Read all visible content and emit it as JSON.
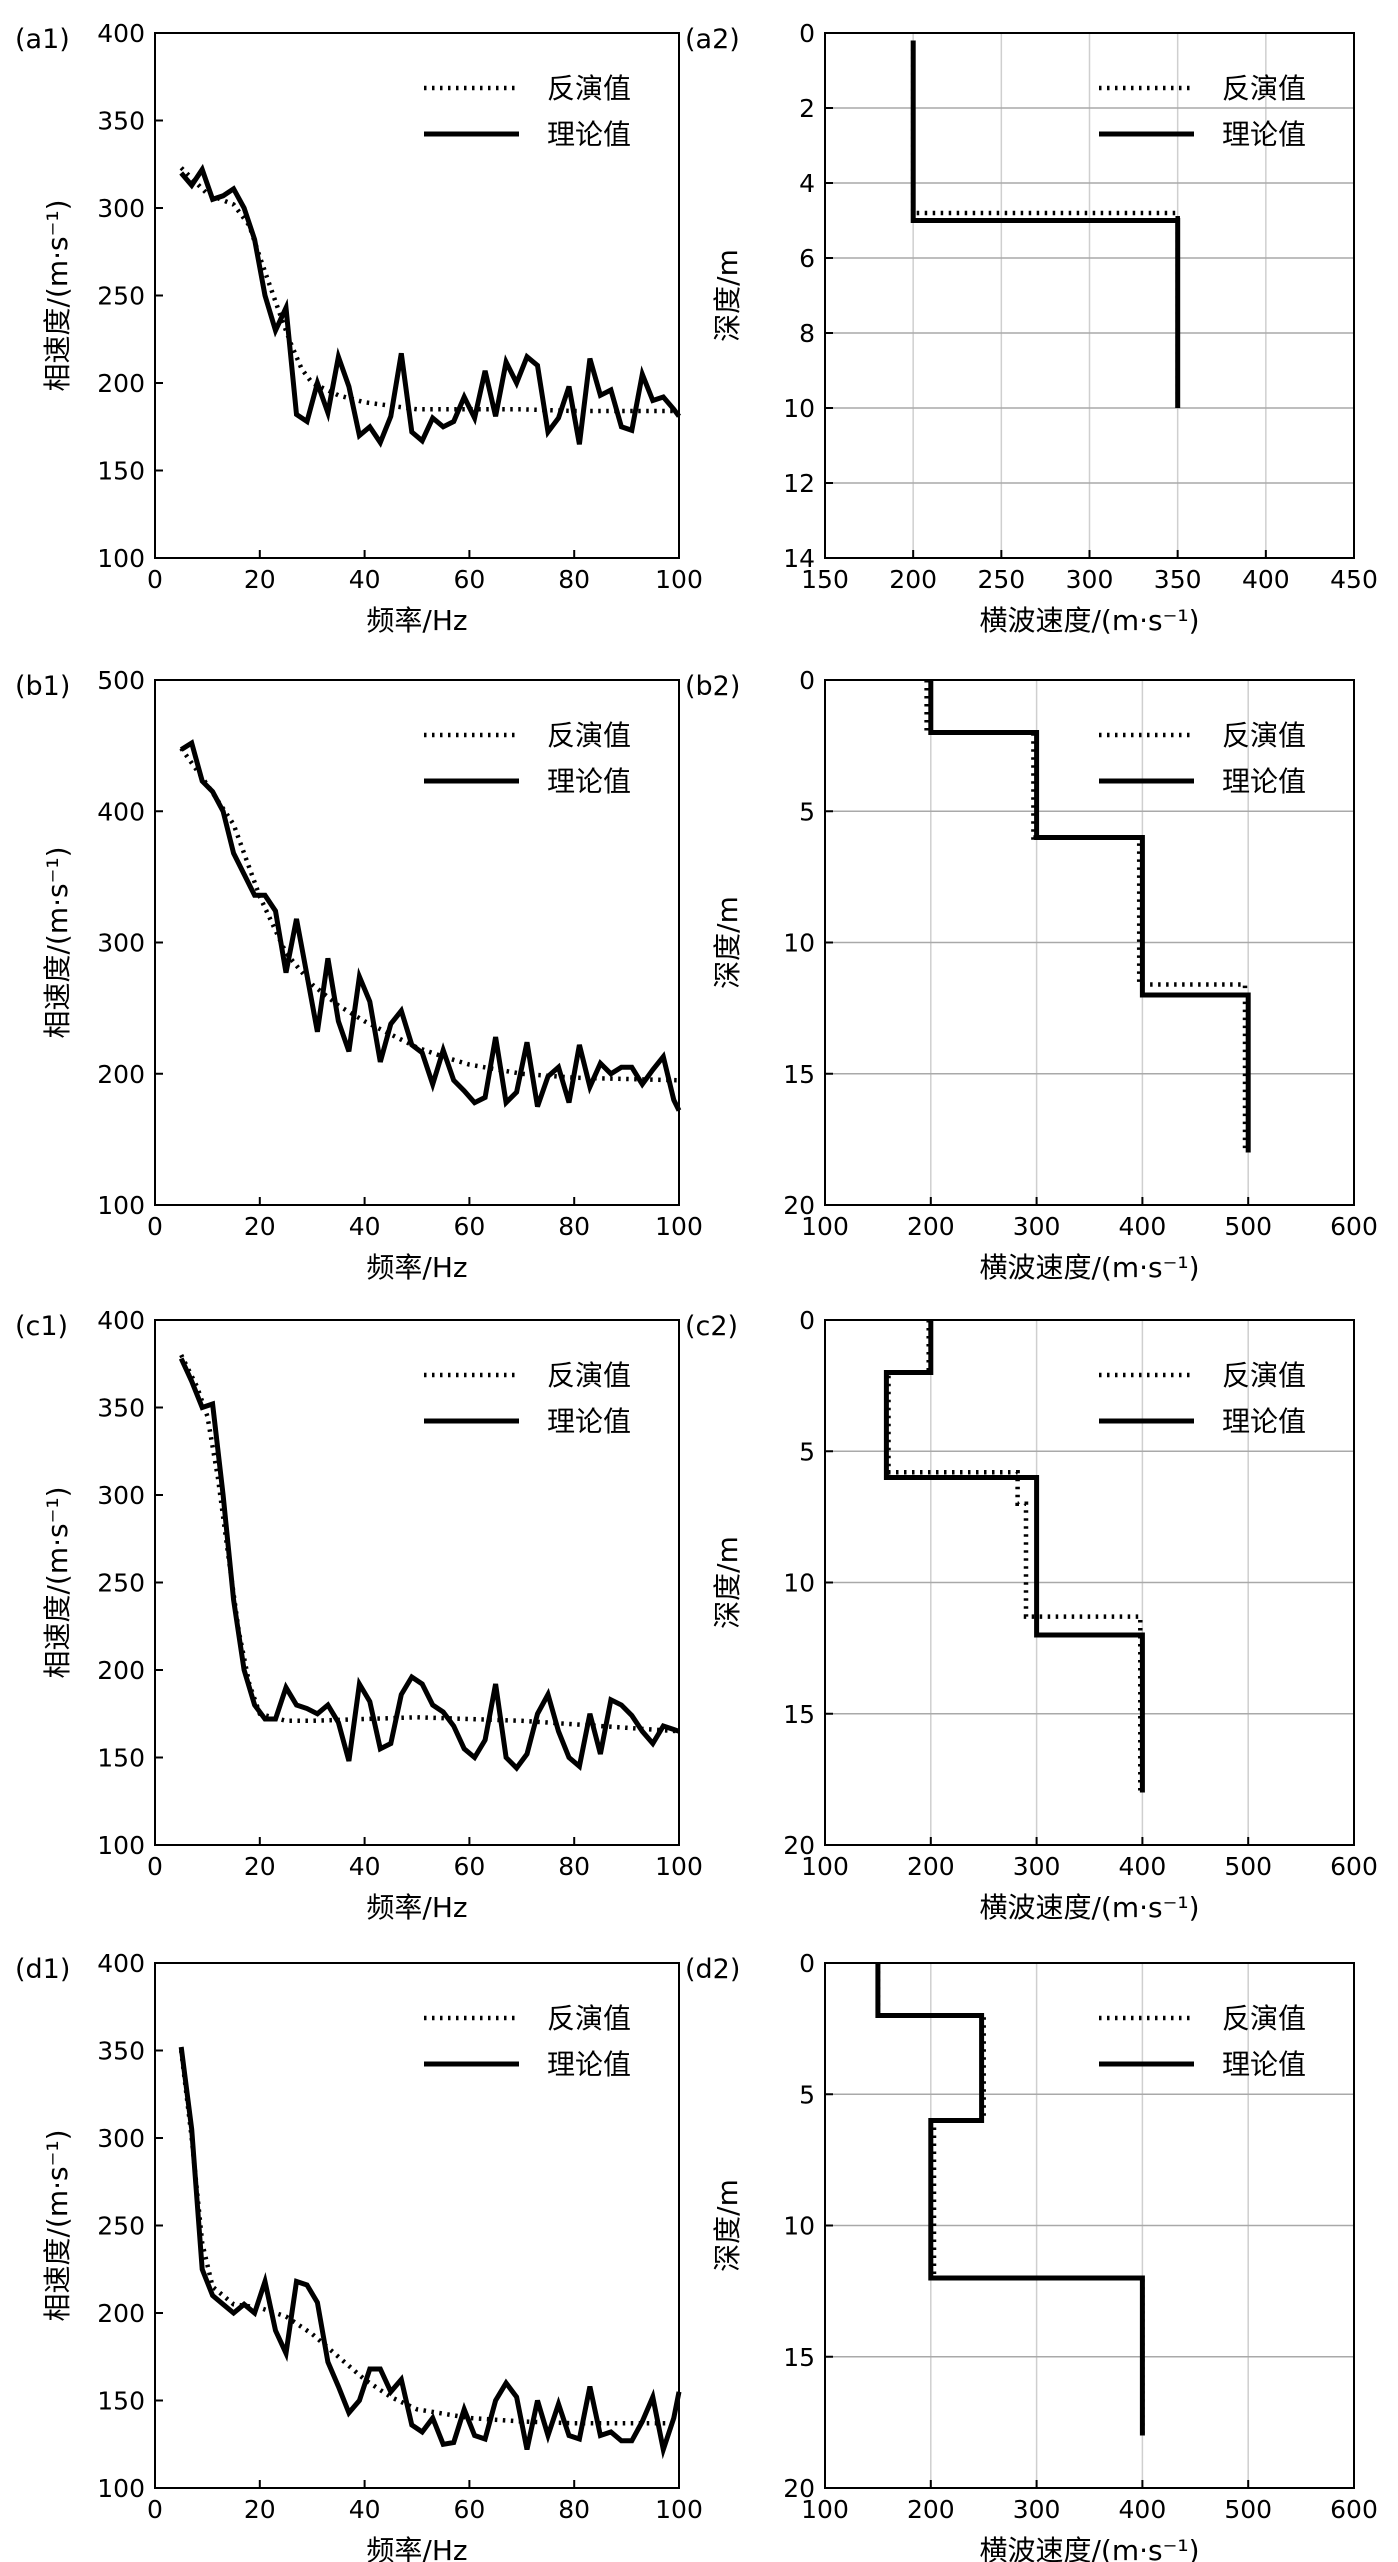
{
  "chart_data": [
    {
      "id": "a1",
      "panel_label": "(a1)",
      "type": "line",
      "xlabel": "频率/Hz",
      "ylabel": "相速度/(m·s⁻¹)",
      "xlim": [
        0,
        100
      ],
      "ylim": [
        100,
        400
      ],
      "xticks": [
        0,
        20,
        40,
        60,
        80,
        100
      ],
      "yticks": [
        100,
        150,
        200,
        250,
        300,
        350,
        400
      ],
      "grid": false,
      "legend_position": "top-right",
      "series": [
        {
          "name": "反演值",
          "style": "dotted",
          "x": [
            5,
            10,
            15,
            18,
            20,
            22,
            24,
            26,
            28,
            30,
            35,
            40,
            45,
            50,
            60,
            70,
            80,
            90,
            100
          ],
          "y": [
            323,
            308,
            302,
            290,
            272,
            255,
            238,
            222,
            208,
            200,
            193,
            189,
            187,
            185,
            185,
            185,
            184,
            184,
            184
          ]
        },
        {
          "name": "理论值",
          "style": "solid",
          "x": [
            5,
            7,
            9,
            11,
            13,
            15,
            17,
            19,
            21,
            23,
            25,
            27,
            29,
            31,
            33,
            35,
            37,
            39,
            41,
            43,
            45,
            47,
            49,
            51,
            53,
            55,
            57,
            59,
            61,
            63,
            65,
            67,
            69,
            71,
            73,
            75,
            77,
            79,
            81,
            83,
            85,
            87,
            89,
            91,
            93,
            95,
            97,
            99,
            100
          ],
          "y": [
            320,
            313,
            322,
            305,
            307,
            311,
            300,
            282,
            250,
            230,
            243,
            182,
            178,
            200,
            183,
            215,
            198,
            170,
            175,
            166,
            181,
            217,
            172,
            167,
            180,
            175,
            178,
            192,
            180,
            207,
            181,
            212,
            200,
            215,
            210,
            172,
            180,
            198,
            165,
            214,
            193,
            196,
            175,
            173,
            205,
            190,
            192,
            185,
            181
          ]
        }
      ]
    },
    {
      "id": "a2",
      "panel_label": "(a2)",
      "type": "line",
      "xlabel": "横波速度/(m·s⁻¹)",
      "ylabel": "深度/m",
      "xlim": [
        150,
        450
      ],
      "ylim": [
        0,
        14
      ],
      "y_inverted": true,
      "xticks": [
        150,
        200,
        250,
        300,
        350,
        400,
        450
      ],
      "yticks": [
        0,
        2,
        4,
        6,
        8,
        10,
        12,
        14
      ],
      "grid": true,
      "legend_position": "top-right",
      "series": [
        {
          "name": "反演值",
          "style": "dotted",
          "x": [
            200,
            200,
            350,
            350
          ],
          "y": [
            0.2,
            4.8,
            4.8,
            10
          ]
        },
        {
          "name": "理论值",
          "style": "solid",
          "x": [
            200,
            200,
            350,
            350
          ],
          "y": [
            0.2,
            5,
            5,
            10
          ]
        }
      ]
    },
    {
      "id": "b1",
      "panel_label": "(b1)",
      "type": "line",
      "xlabel": "频率/Hz",
      "ylabel": "相速度/(m·s⁻¹)",
      "xlim": [
        0,
        100
      ],
      "ylim": [
        100,
        500
      ],
      "xticks": [
        0,
        20,
        40,
        60,
        80,
        100
      ],
      "yticks": [
        100,
        200,
        300,
        400,
        500
      ],
      "grid": false,
      "legend_position": "top-right",
      "series": [
        {
          "name": "反演值",
          "style": "dotted",
          "x": [
            5,
            10,
            15,
            20,
            25,
            30,
            35,
            40,
            45,
            50,
            55,
            60,
            70,
            80,
            90,
            100
          ],
          "y": [
            448,
            420,
            390,
            335,
            292,
            268,
            252,
            240,
            230,
            220,
            213,
            207,
            200,
            197,
            196,
            195
          ]
        },
        {
          "name": "理论值",
          "style": "solid",
          "x": [
            5,
            7,
            9,
            11,
            13,
            15,
            17,
            19,
            21,
            23,
            25,
            27,
            29,
            31,
            33,
            35,
            37,
            39,
            41,
            43,
            45,
            47,
            49,
            51,
            53,
            55,
            57,
            59,
            61,
            63,
            65,
            67,
            69,
            71,
            73,
            75,
            77,
            79,
            81,
            83,
            85,
            87,
            89,
            91,
            93,
            95,
            97,
            99,
            100
          ],
          "y": [
            447,
            452,
            423,
            415,
            400,
            368,
            352,
            336,
            336,
            324,
            277,
            318,
            275,
            232,
            288,
            240,
            217,
            274,
            255,
            209,
            238,
            248,
            222,
            216,
            192,
            218,
            195,
            187,
            178,
            182,
            228,
            178,
            186,
            224,
            175,
            198,
            205,
            178,
            222,
            190,
            208,
            200,
            205,
            205,
            192,
            203,
            213,
            180,
            172
          ]
        }
      ]
    },
    {
      "id": "b2",
      "panel_label": "(b2)",
      "type": "line",
      "xlabel": "横波速度/(m·s⁻¹)",
      "ylabel": "深度/m",
      "xlim": [
        100,
        600
      ],
      "ylim": [
        0,
        20
      ],
      "y_inverted": true,
      "xticks": [
        100,
        200,
        300,
        400,
        500,
        600
      ],
      "yticks": [
        0,
        5,
        10,
        15,
        20
      ],
      "grid": true,
      "legend_position": "top-right",
      "series": [
        {
          "name": "反演值",
          "style": "dotted",
          "x": [
            196,
            196,
            297,
            297,
            397,
            397,
            497,
            497
          ],
          "y": [
            0,
            2,
            2,
            6,
            6,
            11.6,
            11.6,
            18
          ]
        },
        {
          "name": "理论值",
          "style": "solid",
          "x": [
            200,
            200,
            300,
            300,
            400,
            400,
            500,
            500
          ],
          "y": [
            0,
            2,
            2,
            6,
            6,
            12,
            12,
            18
          ]
        }
      ]
    },
    {
      "id": "c1",
      "panel_label": "(c1)",
      "type": "line",
      "xlabel": "频率/Hz",
      "ylabel": "相速度/(m·s⁻¹)",
      "xlim": [
        0,
        100
      ],
      "ylim": [
        100,
        400
      ],
      "xticks": [
        0,
        20,
        40,
        60,
        80,
        100
      ],
      "yticks": [
        100,
        150,
        200,
        250,
        300,
        350,
        400
      ],
      "grid": false,
      "legend_position": "top-right",
      "series": [
        {
          "name": "反演值",
          "style": "dotted",
          "x": [
            5,
            8,
            10,
            12,
            14,
            16,
            18,
            20,
            25,
            30,
            40,
            50,
            60,
            70,
            80,
            90,
            100
          ],
          "y": [
            380,
            362,
            345,
            310,
            265,
            222,
            192,
            175,
            171,
            171,
            172,
            173,
            172,
            171,
            169,
            167,
            165
          ]
        },
        {
          "name": "理论值",
          "style": "solid",
          "x": [
            5,
            7,
            9,
            11,
            13,
            15,
            17,
            19,
            21,
            23,
            25,
            27,
            29,
            31,
            33,
            35,
            37,
            39,
            41,
            43,
            45,
            47,
            49,
            51,
            53,
            55,
            57,
            59,
            61,
            63,
            65,
            67,
            69,
            71,
            73,
            75,
            77,
            79,
            81,
            83,
            85,
            87,
            89,
            91,
            93,
            95,
            97,
            99,
            100
          ],
          "y": [
            378,
            365,
            350,
            352,
            300,
            240,
            200,
            180,
            172,
            172,
            190,
            180,
            178,
            175,
            180,
            170,
            148,
            192,
            182,
            155,
            158,
            186,
            196,
            192,
            180,
            176,
            168,
            155,
            150,
            160,
            192,
            150,
            144,
            152,
            175,
            186,
            165,
            150,
            145,
            175,
            152,
            183,
            180,
            174,
            165,
            158,
            168,
            166,
            165
          ]
        }
      ]
    },
    {
      "id": "c2",
      "panel_label": "(c2)",
      "type": "line",
      "xlabel": "横波速度/(m·s⁻¹)",
      "ylabel": "深度/m",
      "xlim": [
        100,
        600
      ],
      "ylim": [
        0,
        20
      ],
      "y_inverted": true,
      "xticks": [
        100,
        200,
        300,
        400,
        500,
        600
      ],
      "yticks": [
        0,
        5,
        10,
        15,
        20
      ],
      "grid": true,
      "legend_position": "top-right",
      "series": [
        {
          "name": "反演值",
          "style": "dotted",
          "x": [
            198,
            198,
            160,
            160,
            282,
            282,
            290,
            290,
            398,
            398
          ],
          "y": [
            0,
            2,
            2,
            5.8,
            5.8,
            7,
            7,
            11.3,
            11.3,
            18
          ]
        },
        {
          "name": "理论值",
          "style": "solid",
          "x": [
            200,
            200,
            158,
            158,
            300,
            300,
            400,
            400
          ],
          "y": [
            0,
            2,
            2,
            6,
            6,
            12,
            12,
            18
          ]
        }
      ]
    },
    {
      "id": "d1",
      "panel_label": "(d1)",
      "type": "line",
      "xlabel": "频率/Hz",
      "ylabel": "相速度/(m·s⁻¹)",
      "xlim": [
        0,
        100
      ],
      "ylim": [
        100,
        400
      ],
      "xticks": [
        0,
        20,
        40,
        60,
        80,
        100
      ],
      "yticks": [
        100,
        150,
        200,
        250,
        300,
        350,
        400
      ],
      "grid": false,
      "legend_position": "top-right",
      "series": [
        {
          "name": "反演值",
          "style": "dotted",
          "x": [
            5,
            7,
            9,
            11,
            15,
            20,
            25,
            30,
            35,
            40,
            45,
            50,
            60,
            70,
            80,
            90,
            100
          ],
          "y": [
            350,
            300,
            240,
            215,
            205,
            203,
            198,
            188,
            175,
            162,
            152,
            145,
            140,
            138,
            137,
            137,
            137
          ]
        },
        {
          "name": "理论值",
          "style": "solid",
          "x": [
            5,
            7,
            9,
            11,
            13,
            15,
            17,
            19,
            21,
            23,
            25,
            27,
            29,
            31,
            33,
            35,
            37,
            39,
            41,
            43,
            45,
            47,
            49,
            51,
            53,
            55,
            57,
            59,
            61,
            63,
            65,
            67,
            69,
            71,
            73,
            75,
            77,
            79,
            81,
            83,
            85,
            87,
            89,
            91,
            93,
            95,
            97,
            99,
            100
          ],
          "y": [
            352,
            305,
            225,
            210,
            205,
            200,
            205,
            200,
            218,
            190,
            177,
            218,
            216,
            206,
            172,
            158,
            143,
            150,
            168,
            168,
            155,
            162,
            136,
            132,
            140,
            125,
            126,
            145,
            130,
            128,
            150,
            160,
            152,
            122,
            150,
            130,
            148,
            130,
            128,
            158,
            130,
            132,
            127,
            127,
            138,
            152,
            122,
            140,
            155
          ]
        }
      ]
    },
    {
      "id": "d2",
      "panel_label": "(d2)",
      "type": "line",
      "xlabel": "横波速度/(m·s⁻¹)",
      "ylabel": "深度/m",
      "xlim": [
        100,
        600
      ],
      "ylim": [
        0,
        20
      ],
      "y_inverted": true,
      "xticks": [
        100,
        200,
        300,
        400,
        500,
        600
      ],
      "yticks": [
        0,
        5,
        10,
        15,
        20
      ],
      "grid": true,
      "legend_position": "top-right",
      "series": [
        {
          "name": "反演值",
          "style": "dotted",
          "x": [
            150,
            150,
            250,
            250,
            203,
            203,
            400,
            400
          ],
          "y": [
            0,
            2,
            2,
            6,
            6,
            12,
            12,
            18
          ]
        },
        {
          "name": "理论值",
          "style": "solid",
          "x": [
            150,
            150,
            248,
            248,
            200,
            200,
            400,
            400
          ],
          "y": [
            0,
            2,
            2,
            6,
            6,
            12,
            12,
            18
          ]
        }
      ]
    }
  ]
}
